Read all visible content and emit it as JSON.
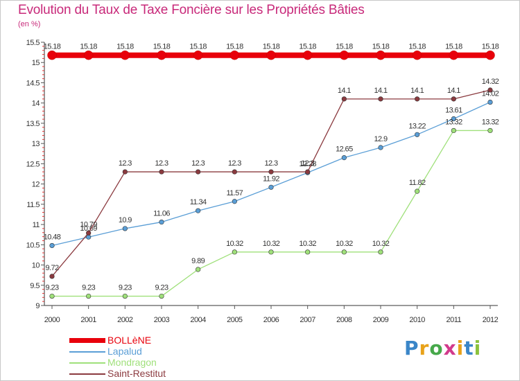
{
  "header": {
    "title": "Evolution du Taux de Taxe Foncière sur les Propriétés Bâties",
    "subtitle": "(en %)"
  },
  "brand": {
    "letters": [
      "P",
      "r",
      "o",
      "x",
      "i",
      "t",
      "i"
    ],
    "colors": [
      "#3a86c8",
      "#e8a21a",
      "#46a84a",
      "#d23a8c",
      "#e8a21a",
      "#3a86c8",
      "#8cc23c"
    ]
  },
  "chart_data": {
    "type": "line",
    "x": [
      "2000",
      "2001",
      "2002",
      "2003",
      "2004",
      "2005",
      "2006",
      "2007",
      "2008",
      "2009",
      "2010",
      "2011",
      "2012"
    ],
    "ylim": [
      9,
      15.5
    ],
    "yticks": [
      "9",
      "9.5",
      "10",
      "10.5",
      "11",
      "11.5",
      "12",
      "12.5",
      "13",
      "13.5",
      "14",
      "14.5",
      "15",
      "15.5"
    ],
    "grid": false,
    "legend_position": "bottom-left",
    "series": [
      {
        "name": "BOLLèNE",
        "color": "#e8000b",
        "values": [
          15.18,
          15.18,
          15.18,
          15.18,
          15.18,
          15.18,
          15.18,
          15.18,
          15.18,
          15.18,
          15.18,
          15.18,
          15.18
        ],
        "labels": [
          "15.18",
          "15.18",
          "15.18",
          "15.18",
          "15.18",
          "15.18",
          "15.18",
          "15.18",
          "15.18",
          "15.18",
          "15.18",
          "15.18",
          "15.18"
        ]
      },
      {
        "name": "Lapalud",
        "color": "#5a9ed6",
        "values": [
          10.48,
          10.69,
          10.9,
          11.06,
          11.34,
          11.57,
          11.92,
          12.28,
          12.65,
          12.9,
          13.22,
          13.61,
          14.02
        ],
        "labels": [
          "10.48",
          "10.69",
          "10.9",
          "11.06",
          "11.34",
          "11.57",
          "11.92",
          "12.28",
          "12.65",
          "12.9",
          "13.22",
          "13.61",
          "14.02"
        ]
      },
      {
        "name": "Mondragon",
        "color": "#9fe07a",
        "values": [
          9.23,
          9.23,
          9.23,
          9.23,
          9.89,
          10.32,
          10.32,
          10.32,
          10.32,
          10.32,
          11.82,
          13.32,
          13.32
        ],
        "labels": [
          "9.23",
          "9.23",
          "9.23",
          "9.23",
          "9.89",
          "10.32",
          "10.32",
          "10.32",
          "10.32",
          "10.32",
          "11.82",
          "13.32",
          "13.32"
        ]
      },
      {
        "name": "Saint-Restitut",
        "color": "#8b3a3f",
        "values": [
          9.72,
          10.79,
          12.3,
          12.3,
          12.3,
          12.3,
          12.3,
          12.3,
          14.1,
          14.1,
          14.1,
          14.1,
          14.32
        ],
        "labels": [
          "9.72",
          "10.79",
          "12.3",
          "12.3",
          "12.3",
          "12.3",
          "12.3",
          "12.3",
          "14.1",
          "14.1",
          "14.1",
          "14.1",
          "14.32"
        ]
      }
    ]
  }
}
